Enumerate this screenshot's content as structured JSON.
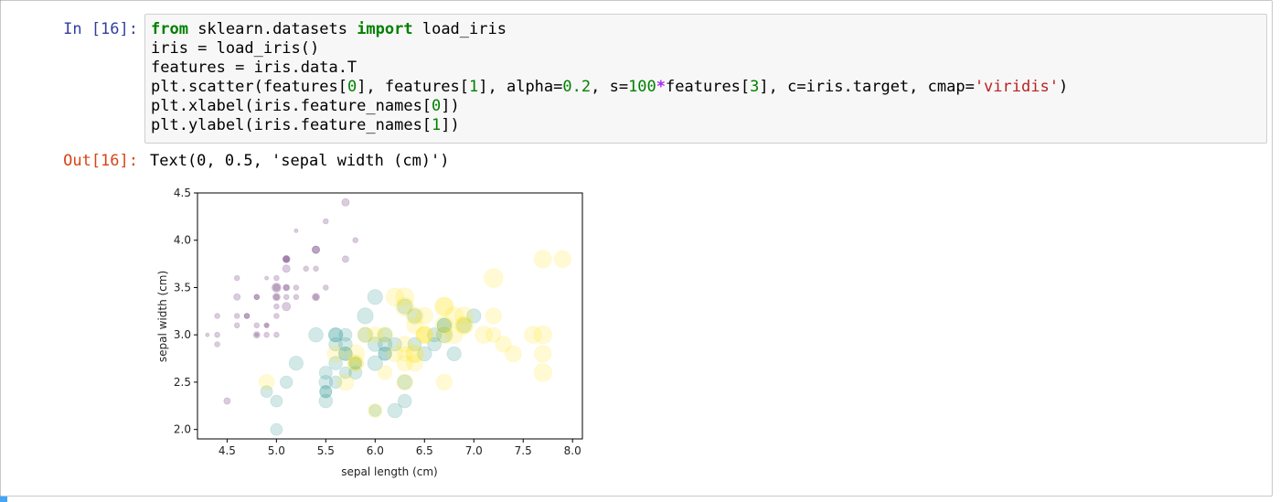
{
  "cell": {
    "in_prompt": "In [16]:",
    "out_prompt": "Out[16]:",
    "code_lines": [
      [
        {
          "t": "from",
          "c": "kw"
        },
        {
          "t": " sklearn.datasets ",
          "c": ""
        },
        {
          "t": "import",
          "c": "kw"
        },
        {
          "t": " load_iris",
          "c": ""
        }
      ],
      [
        {
          "t": "iris = load_iris()",
          "c": ""
        }
      ],
      [
        {
          "t": "features = iris.data.T",
          "c": ""
        }
      ],
      [
        {
          "t": "plt.scatter(features[",
          "c": ""
        },
        {
          "t": "0",
          "c": "num"
        },
        {
          "t": "], features[",
          "c": ""
        },
        {
          "t": "1",
          "c": "num"
        },
        {
          "t": "], alpha=",
          "c": ""
        },
        {
          "t": "0.2",
          "c": "num"
        },
        {
          "t": ", s=",
          "c": ""
        },
        {
          "t": "100",
          "c": "num"
        },
        {
          "t": "*",
          "c": "op"
        },
        {
          "t": "features[",
          "c": ""
        },
        {
          "t": "3",
          "c": "num"
        },
        {
          "t": "], c=iris.target, cmap=",
          "c": ""
        },
        {
          "t": "'viridis'",
          "c": "str"
        },
        {
          "t": ")",
          "c": ""
        }
      ],
      [
        {
          "t": "plt.xlabel(iris.feature_names[",
          "c": ""
        },
        {
          "t": "0",
          "c": "num"
        },
        {
          "t": "])",
          "c": ""
        }
      ],
      [
        {
          "t": "plt.ylabel(iris.feature_names[",
          "c": ""
        },
        {
          "t": "1",
          "c": "num"
        },
        {
          "t": "])",
          "c": ""
        }
      ]
    ],
    "output_text": "Text(0, 0.5, 'sepal width (cm)')"
  },
  "colors": {
    "selection_bar": "#42a5f5",
    "class_0": "#440154",
    "class_1": "#21918c",
    "class_2": "#fde725"
  },
  "chart_data": {
    "type": "scatter",
    "title": "",
    "xlabel": "sepal length (cm)",
    "ylabel": "sepal width (cm)",
    "xlim": [
      4.2,
      8.1
    ],
    "ylim": [
      1.9,
      4.5
    ],
    "xticks": [
      "4.5",
      "5.0",
      "5.5",
      "6.0",
      "6.5",
      "7.0",
      "7.5",
      "8.0"
    ],
    "yticks": [
      "2.0",
      "2.5",
      "3.0",
      "3.5",
      "4.0",
      "4.5"
    ],
    "grid": false,
    "alpha": 0.2,
    "size_scale": "s=100*petal width (cm)",
    "series": [
      {
        "points": [
          [
            5.1,
            3.5,
            0.2
          ],
          [
            4.9,
            3.0,
            0.2
          ],
          [
            4.7,
            3.2,
            0.2
          ],
          [
            4.6,
            3.1,
            0.2
          ],
          [
            5.0,
            3.6,
            0.2
          ],
          [
            5.4,
            3.9,
            0.4
          ],
          [
            4.6,
            3.4,
            0.3
          ],
          [
            5.0,
            3.4,
            0.2
          ],
          [
            4.4,
            2.9,
            0.2
          ],
          [
            4.9,
            3.1,
            0.1
          ],
          [
            5.4,
            3.7,
            0.2
          ],
          [
            4.8,
            3.4,
            0.2
          ],
          [
            4.8,
            3.0,
            0.1
          ],
          [
            4.3,
            3.0,
            0.1
          ],
          [
            5.8,
            4.0,
            0.2
          ],
          [
            5.7,
            4.4,
            0.4
          ],
          [
            5.4,
            3.9,
            0.4
          ],
          [
            5.1,
            3.5,
            0.3
          ],
          [
            5.7,
            3.8,
            0.3
          ],
          [
            5.1,
            3.8,
            0.3
          ],
          [
            5.4,
            3.4,
            0.2
          ],
          [
            5.1,
            3.7,
            0.4
          ],
          [
            4.6,
            3.6,
            0.2
          ],
          [
            5.1,
            3.3,
            0.5
          ],
          [
            4.8,
            3.4,
            0.2
          ],
          [
            5.0,
            3.0,
            0.2
          ],
          [
            5.0,
            3.4,
            0.4
          ],
          [
            5.2,
            3.5,
            0.2
          ],
          [
            5.2,
            3.4,
            0.2
          ],
          [
            4.7,
            3.2,
            0.2
          ],
          [
            4.8,
            3.1,
            0.2
          ],
          [
            5.4,
            3.4,
            0.4
          ],
          [
            5.2,
            4.1,
            0.1
          ],
          [
            5.5,
            4.2,
            0.2
          ],
          [
            4.9,
            3.1,
            0.2
          ],
          [
            5.0,
            3.2,
            0.2
          ],
          [
            5.5,
            3.5,
            0.2
          ],
          [
            4.9,
            3.6,
            0.1
          ],
          [
            4.4,
            3.0,
            0.2
          ],
          [
            5.1,
            3.4,
            0.2
          ],
          [
            5.0,
            3.5,
            0.3
          ],
          [
            4.5,
            2.3,
            0.3
          ],
          [
            4.4,
            3.2,
            0.2
          ],
          [
            5.0,
            3.5,
            0.6
          ],
          [
            5.1,
            3.8,
            0.4
          ],
          [
            4.8,
            3.0,
            0.3
          ],
          [
            5.1,
            3.8,
            0.2
          ],
          [
            4.6,
            3.2,
            0.2
          ],
          [
            5.3,
            3.7,
            0.2
          ],
          [
            5.0,
            3.3,
            0.2
          ]
        ]
      },
      {
        "points": [
          [
            7.0,
            3.2,
            1.4
          ],
          [
            6.4,
            3.2,
            1.5
          ],
          [
            6.9,
            3.1,
            1.5
          ],
          [
            5.5,
            2.3,
            1.3
          ],
          [
            6.5,
            2.8,
            1.5
          ],
          [
            5.7,
            2.8,
            1.3
          ],
          [
            6.3,
            3.3,
            1.6
          ],
          [
            4.9,
            2.4,
            1.0
          ],
          [
            6.6,
            2.9,
            1.3
          ],
          [
            5.2,
            2.7,
            1.4
          ],
          [
            5.0,
            2.0,
            1.0
          ],
          [
            5.9,
            3.0,
            1.5
          ],
          [
            6.0,
            2.2,
            1.0
          ],
          [
            6.1,
            2.9,
            1.4
          ],
          [
            5.6,
            2.9,
            1.3
          ],
          [
            6.7,
            3.1,
            1.4
          ],
          [
            5.6,
            3.0,
            1.5
          ],
          [
            5.8,
            2.7,
            1.0
          ],
          [
            6.2,
            2.2,
            1.5
          ],
          [
            5.6,
            2.5,
            1.1
          ],
          [
            5.9,
            3.2,
            1.8
          ],
          [
            6.1,
            2.8,
            1.3
          ],
          [
            6.3,
            2.5,
            1.5
          ],
          [
            6.1,
            2.8,
            1.2
          ],
          [
            6.4,
            2.9,
            1.3
          ],
          [
            6.6,
            3.0,
            1.4
          ],
          [
            6.8,
            2.8,
            1.4
          ],
          [
            6.7,
            3.0,
            1.7
          ],
          [
            6.0,
            2.9,
            1.5
          ],
          [
            5.7,
            2.6,
            1.0
          ],
          [
            5.5,
            2.4,
            1.1
          ],
          [
            5.5,
            2.4,
            1.0
          ],
          [
            5.8,
            2.7,
            1.2
          ],
          [
            6.0,
            2.7,
            1.6
          ],
          [
            5.4,
            3.0,
            1.5
          ],
          [
            6.0,
            3.4,
            1.6
          ],
          [
            6.7,
            3.1,
            1.5
          ],
          [
            6.3,
            2.3,
            1.3
          ],
          [
            5.6,
            3.0,
            1.3
          ],
          [
            5.5,
            2.5,
            1.3
          ],
          [
            5.5,
            2.6,
            1.2
          ],
          [
            6.1,
            3.0,
            1.4
          ],
          [
            5.8,
            2.6,
            1.2
          ],
          [
            5.0,
            2.3,
            1.0
          ],
          [
            5.6,
            2.7,
            1.3
          ],
          [
            5.7,
            3.0,
            1.2
          ],
          [
            5.7,
            2.9,
            1.3
          ],
          [
            6.2,
            2.9,
            1.3
          ],
          [
            5.1,
            2.5,
            1.1
          ],
          [
            5.7,
            2.8,
            1.3
          ]
        ]
      },
      {
        "points": [
          [
            6.3,
            3.3,
            2.5
          ],
          [
            5.8,
            2.7,
            1.9
          ],
          [
            7.1,
            3.0,
            2.1
          ],
          [
            6.3,
            2.9,
            1.8
          ],
          [
            6.5,
            3.0,
            2.2
          ],
          [
            7.6,
            3.0,
            2.1
          ],
          [
            4.9,
            2.5,
            1.7
          ],
          [
            7.3,
            2.9,
            1.8
          ],
          [
            6.7,
            2.5,
            1.8
          ],
          [
            7.2,
            3.6,
            2.5
          ],
          [
            6.5,
            3.2,
            2.0
          ],
          [
            6.4,
            2.7,
            1.9
          ],
          [
            6.8,
            3.0,
            2.1
          ],
          [
            5.7,
            2.5,
            2.0
          ],
          [
            5.8,
            2.8,
            2.4
          ],
          [
            6.4,
            3.2,
            2.3
          ],
          [
            6.5,
            3.0,
            1.8
          ],
          [
            7.7,
            3.8,
            2.2
          ],
          [
            7.7,
            2.6,
            2.3
          ],
          [
            6.0,
            2.2,
            1.5
          ],
          [
            6.9,
            3.2,
            2.3
          ],
          [
            5.6,
            2.8,
            2.0
          ],
          [
            7.7,
            2.8,
            2.0
          ],
          [
            6.3,
            2.7,
            1.8
          ],
          [
            6.7,
            3.3,
            2.1
          ],
          [
            7.2,
            3.2,
            1.8
          ],
          [
            6.2,
            2.8,
            1.8
          ],
          [
            6.1,
            3.0,
            1.8
          ],
          [
            6.4,
            2.8,
            2.1
          ],
          [
            7.2,
            3.0,
            1.6
          ],
          [
            7.4,
            2.8,
            1.9
          ],
          [
            7.9,
            3.8,
            2.0
          ],
          [
            6.4,
            2.8,
            2.2
          ],
          [
            6.3,
            2.8,
            1.5
          ],
          [
            6.1,
            2.6,
            1.4
          ],
          [
            7.7,
            3.0,
            2.3
          ],
          [
            6.3,
            3.4,
            2.4
          ],
          [
            6.4,
            3.1,
            1.8
          ],
          [
            6.0,
            3.0,
            1.8
          ],
          [
            6.9,
            3.1,
            2.1
          ],
          [
            6.7,
            3.1,
            2.4
          ],
          [
            6.9,
            3.1,
            2.3
          ],
          [
            5.8,
            2.7,
            1.9
          ],
          [
            6.8,
            3.2,
            2.3
          ],
          [
            6.7,
            3.3,
            2.5
          ],
          [
            6.7,
            3.0,
            2.3
          ],
          [
            6.3,
            2.5,
            1.9
          ],
          [
            6.5,
            3.0,
            2.0
          ],
          [
            6.2,
            3.4,
            2.3
          ],
          [
            5.9,
            3.0,
            1.8
          ]
        ]
      }
    ]
  }
}
